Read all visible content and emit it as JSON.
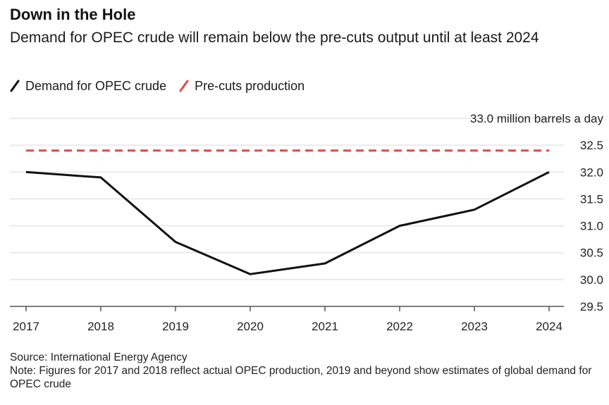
{
  "chart_data": {
    "type": "line",
    "title": "Down in the Hole",
    "subtitle": "Demand for OPEC crude will remain below the pre-cuts output until at least 2024",
    "x": [
      "2017",
      "2018",
      "2019",
      "2020",
      "2021",
      "2022",
      "2023",
      "2024"
    ],
    "series": [
      {
        "name": "Demand for OPEC crude",
        "values": [
          32.0,
          31.9,
          30.7,
          30.1,
          30.3,
          31.0,
          31.3,
          32.0
        ],
        "color": "#111111",
        "style": "solid"
      },
      {
        "name": "Pre-cuts production",
        "values": [
          32.4,
          32.4,
          32.4,
          32.4,
          32.4,
          32.4,
          32.4,
          32.4
        ],
        "color": "#e8474c",
        "style": "dashed"
      }
    ],
    "y_ticks": [
      "29.5",
      "30.0",
      "30.5",
      "31.0",
      "31.5",
      "32.0",
      "32.5",
      "33.0 million barrels a day"
    ],
    "ylim": [
      29.5,
      33.0
    ],
    "y_axis_position": "right",
    "grid": true,
    "legend_position": "top-left"
  },
  "footer": {
    "source": "Source: International Energy Agency",
    "note": "Note: Figures for 2017 and 2018 reflect actual OPEC production, 2019 and beyond show estimates of global demand for OPEC crude"
  }
}
